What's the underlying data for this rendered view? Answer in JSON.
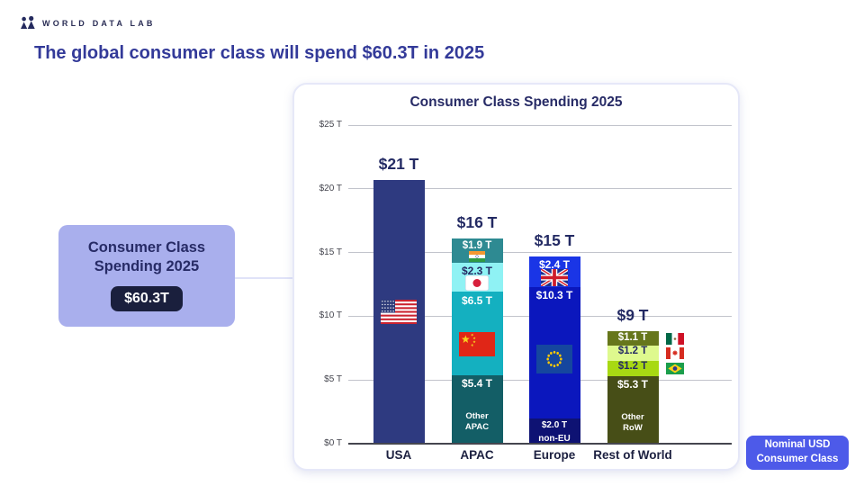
{
  "brand": {
    "name": "WORLD DATA LAB",
    "logo_icon": "people-icon"
  },
  "headline": "The global consumer class will spend $60.3T in 2025",
  "callout": {
    "title_line1": "Consumer Class",
    "title_line2": "Spending 2025",
    "value": "$60.3T",
    "background_color": "#a9afed",
    "badge_color": "#1a1f3d"
  },
  "legend_chip": {
    "line1": "Nominal USD",
    "line2": "Consumer Class",
    "color": "#4d5ae9"
  },
  "chart_data": {
    "type": "bar",
    "stacked": true,
    "title": "Consumer Class Spending 2025",
    "unit": "USD trillions",
    "grid": true,
    "ylim": [
      0,
      25
    ],
    "ytick_step": 5,
    "ytick_labels": [
      "$0 T",
      "$5 T",
      "$10 T",
      "$15 T",
      "$20 T",
      "$25 T"
    ],
    "categories": [
      "USA",
      "APAC",
      "Europe",
      "Rest of World"
    ],
    "totals_labels": [
      "$21 T",
      "$16 T",
      "$15 T",
      "$9 T"
    ],
    "bars": [
      {
        "category": "USA",
        "total_label": "$21 T",
        "segments": [
          {
            "name": "USA",
            "value": 20.7,
            "label": "",
            "color": "#2e3a80",
            "text_color": "#ffffff",
            "flag": "usa-flag",
            "flag_placement": "center"
          }
        ]
      },
      {
        "category": "APAC",
        "total_label": "$16 T",
        "segments": [
          {
            "name": "India",
            "value": 1.9,
            "label": "$1.9 T",
            "color": "#2e8a92",
            "text_color": "#ffffff",
            "flag": "india-flag",
            "flag_placement": "below-label"
          },
          {
            "name": "Japan",
            "value": 2.3,
            "label": "$2.3 T",
            "color": "#8ff2f4",
            "text_color": "#252a63",
            "flag": "japan-flag",
            "flag_placement": "below-label"
          },
          {
            "name": "China",
            "value": 6.5,
            "label": "$6.5 T",
            "color": "#14b0c0",
            "text_color": "#ffffff",
            "flag": "china-flag",
            "flag_placement": "center"
          },
          {
            "name": "Other APAC",
            "value": 5.4,
            "label": "$5.4 T",
            "color": "#135e66",
            "text_color": "#ffffff",
            "sublabel": "Other\nAPAC"
          }
        ]
      },
      {
        "category": "Europe",
        "total_label": "$15 T",
        "segments": [
          {
            "name": "UK",
            "value": 2.4,
            "label": "$2.4 T",
            "color": "#1a35e6",
            "text_color": "#ffffff",
            "flag": "uk-flag",
            "flag_placement": "below-label"
          },
          {
            "name": "EU",
            "value": 10.3,
            "label": "$10.3 T",
            "color": "#0b17bd",
            "text_color": "#ffffff",
            "flag": "eu-flag",
            "flag_placement": "center"
          },
          {
            "name": "non-EU",
            "value": 2.0,
            "label": "$2.0 T",
            "color": "#0e1273",
            "text_color": "#ffffff",
            "sublabel": "non-EU"
          }
        ]
      },
      {
        "category": "Rest of World",
        "total_label": "$9 T",
        "segments": [
          {
            "name": "Mexico",
            "value": 1.1,
            "label": "$1.1 T",
            "color": "#66761b",
            "text_color": "#ffffff",
            "flag": "mexico-flag",
            "flag_placement": "right"
          },
          {
            "name": "Canada",
            "value": 1.2,
            "label": "$1.2 T",
            "color": "#def98e",
            "text_color": "#252a63",
            "flag": "canada-flag",
            "flag_placement": "right"
          },
          {
            "name": "Brazil",
            "value": 1.2,
            "label": "$1.2 T",
            "color": "#a8d913",
            "text_color": "#252a63",
            "flag": "brazil-flag",
            "flag_placement": "right"
          },
          {
            "name": "Other RoW",
            "value": 5.3,
            "label": "$5.3 T",
            "color": "#474e17",
            "text_color": "#ffffff",
            "sublabel": "Other\nRoW"
          }
        ]
      }
    ]
  }
}
